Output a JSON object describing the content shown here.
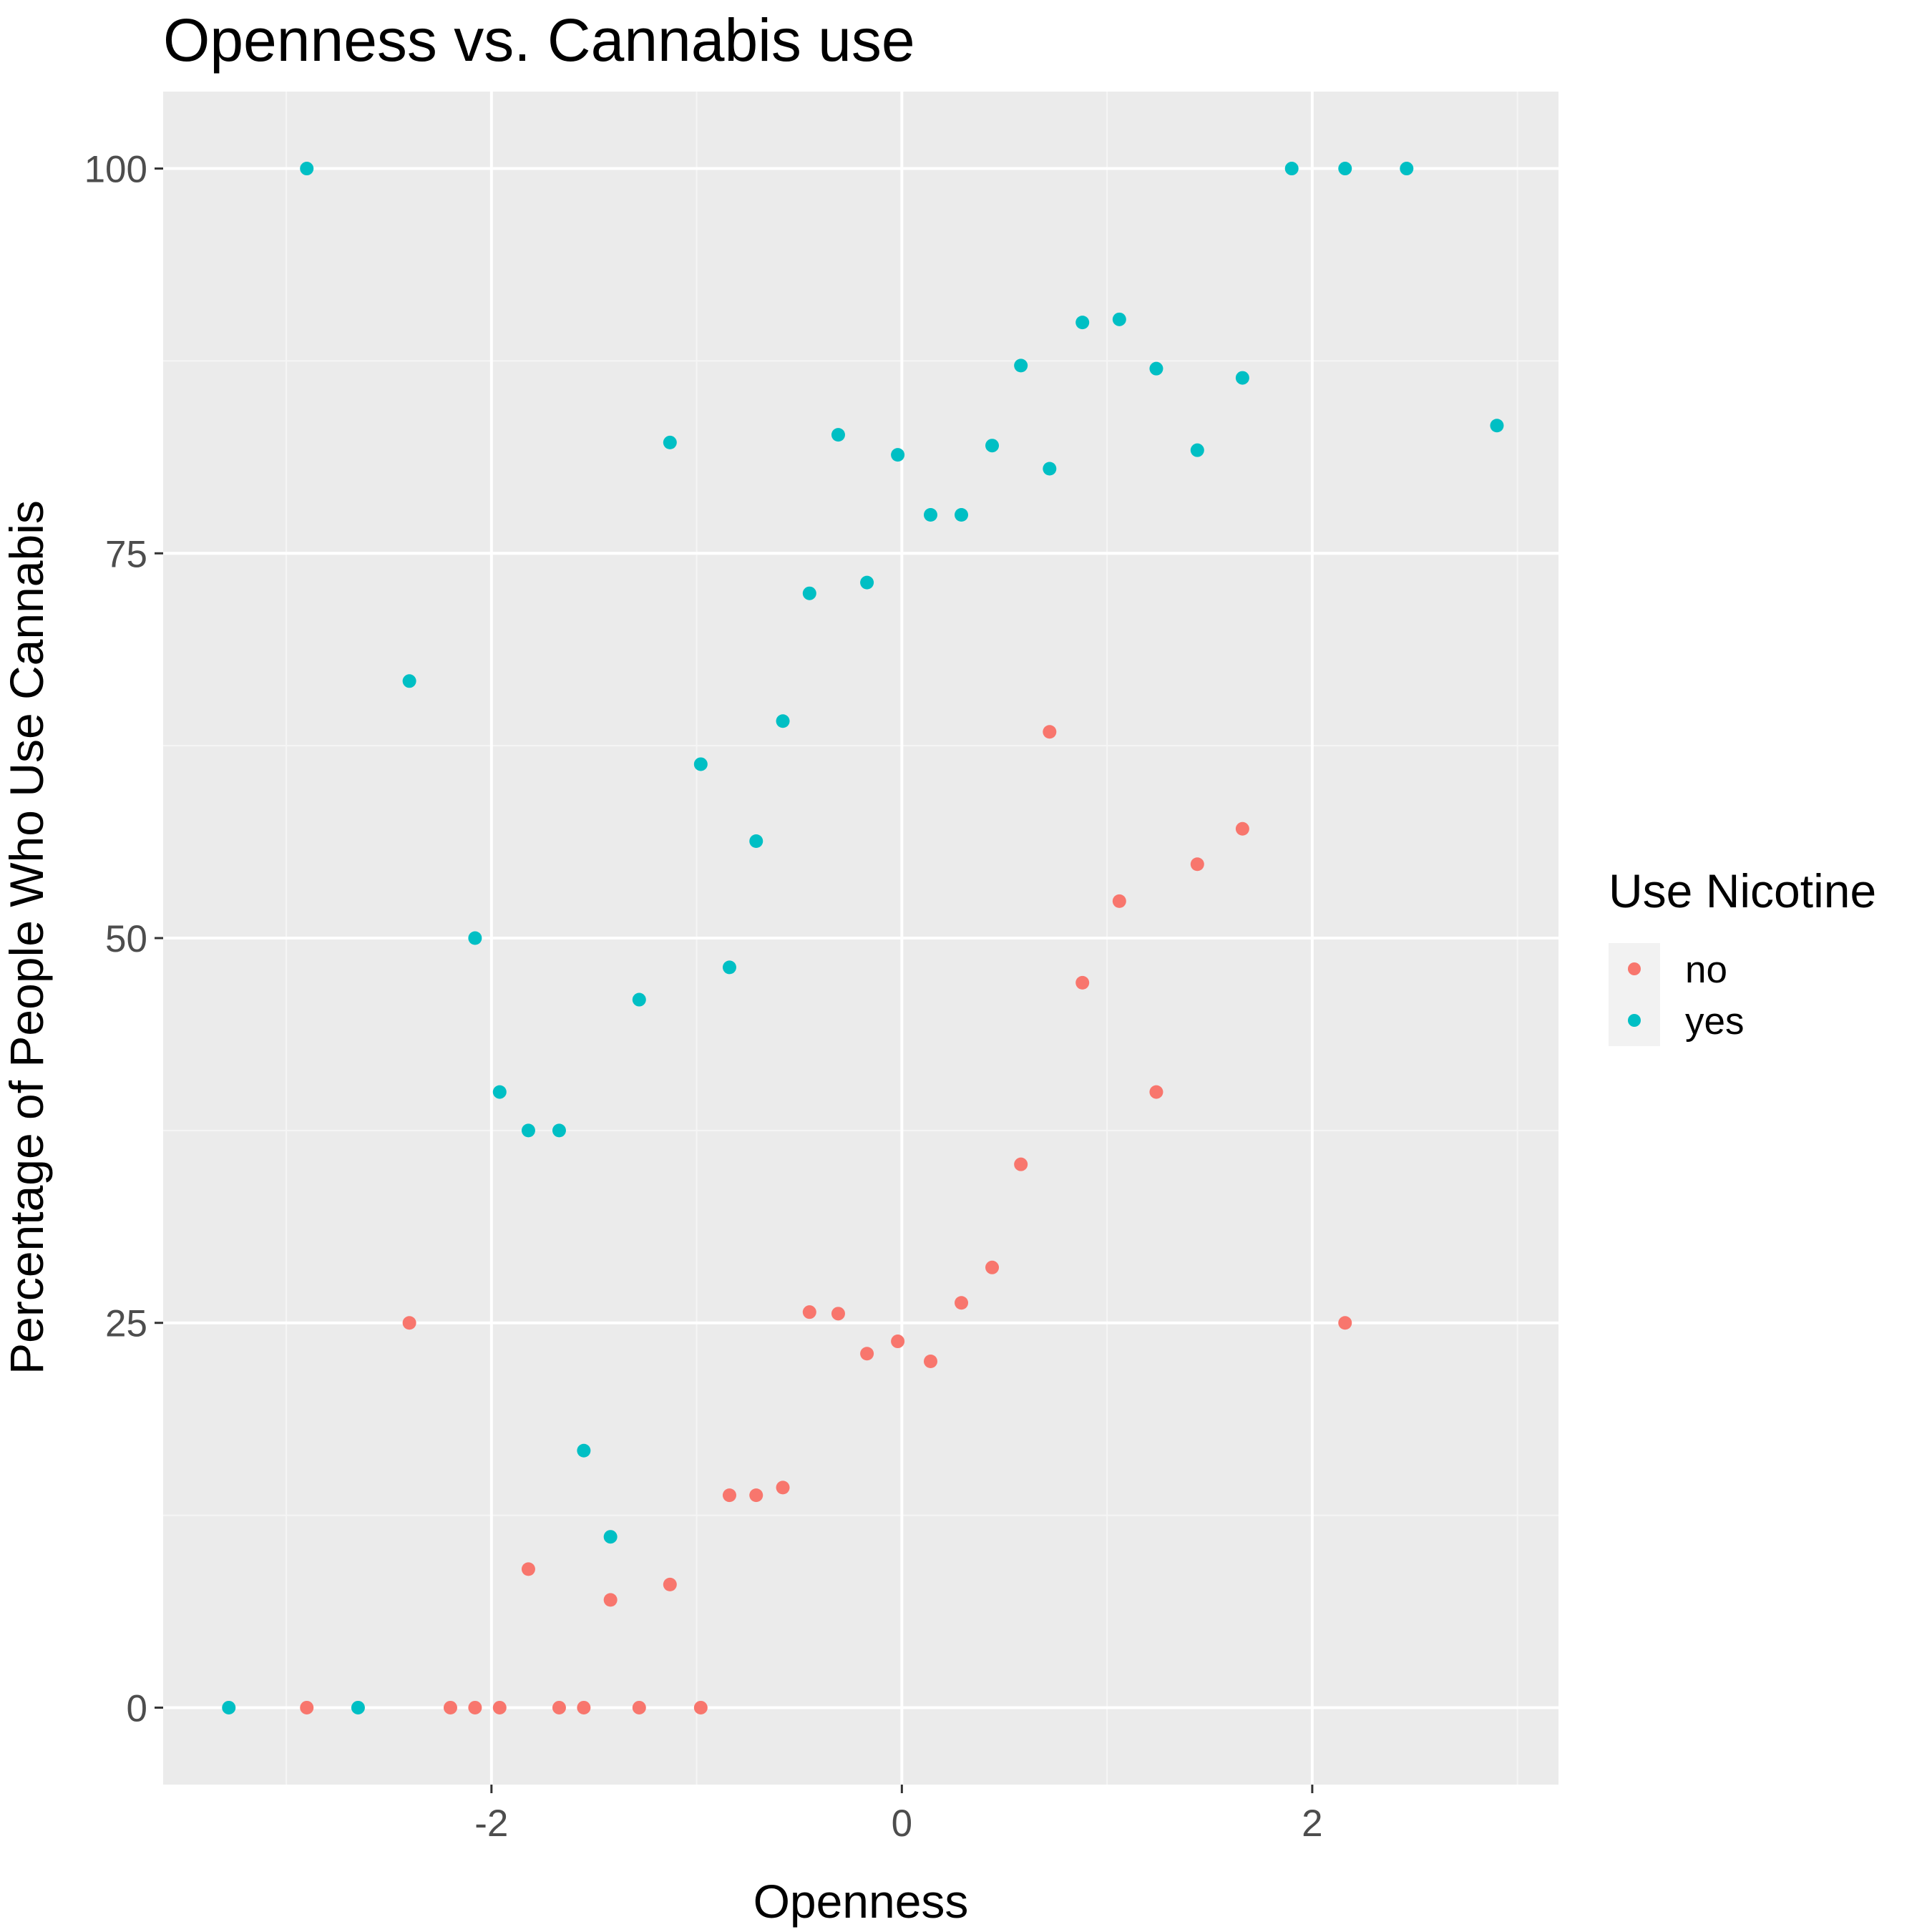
{
  "chart_data": {
    "type": "scatter",
    "title": "Openness vs. Cannabis use",
    "xlabel": "Openness",
    "ylabel": "Percentage of People Who Use Cannabis",
    "xlim": [
      -3.6,
      3.2
    ],
    "ylim": [
      -5,
      105
    ],
    "x_ticks": [
      -2,
      0,
      2
    ],
    "x_tick_labels": [
      "-2",
      "0",
      "2"
    ],
    "y_ticks": [
      0,
      25,
      50,
      75,
      100
    ],
    "y_tick_labels": [
      "0",
      "25",
      "50",
      "75",
      "100"
    ],
    "grid": true,
    "legend": {
      "title": "Use Nicotine",
      "placement": "right"
    },
    "series": [
      {
        "name": "no",
        "color": "#f8766d",
        "points": [
          [
            -2.9,
            0
          ],
          [
            -2.4,
            25
          ],
          [
            -2.2,
            0
          ],
          [
            -2.08,
            0
          ],
          [
            -1.96,
            0
          ],
          [
            -1.82,
            9
          ],
          [
            -1.67,
            0
          ],
          [
            -1.55,
            0
          ],
          [
            -1.42,
            7
          ],
          [
            -1.28,
            0
          ],
          [
            -1.13,
            8
          ],
          [
            -0.98,
            0
          ],
          [
            -0.84,
            13.8
          ],
          [
            -0.71,
            13.8
          ],
          [
            -0.58,
            14.3
          ],
          [
            -0.45,
            25.7
          ],
          [
            -0.31,
            25.6
          ],
          [
            -0.17,
            23
          ],
          [
            -0.02,
            23.8
          ],
          [
            0.14,
            22.5
          ],
          [
            0.29,
            26.3
          ],
          [
            0.44,
            28.6
          ],
          [
            0.58,
            35.3
          ],
          [
            0.72,
            63.4
          ],
          [
            0.88,
            47.1
          ],
          [
            1.06,
            52.4
          ],
          [
            1.24,
            40
          ],
          [
            1.44,
            54.8
          ],
          [
            1.66,
            57.1
          ],
          [
            2.16,
            25
          ]
        ]
      },
      {
        "name": "yes",
        "color": "#00bfc4",
        "points": [
          [
            -3.28,
            0
          ],
          [
            -2.9,
            100
          ],
          [
            -2.65,
            0
          ],
          [
            -2.4,
            66.7
          ],
          [
            -2.08,
            50
          ],
          [
            -1.96,
            40
          ],
          [
            -1.82,
            37.5
          ],
          [
            -1.67,
            37.5
          ],
          [
            -1.55,
            16.7
          ],
          [
            -1.42,
            11.1
          ],
          [
            -1.28,
            46
          ],
          [
            -1.13,
            82.2
          ],
          [
            -0.98,
            61.3
          ],
          [
            -0.84,
            48.1
          ],
          [
            -0.71,
            56.3
          ],
          [
            -0.58,
            64.1
          ],
          [
            -0.45,
            72.4
          ],
          [
            -0.31,
            82.7
          ],
          [
            -0.17,
            73.1
          ],
          [
            -0.02,
            81.4
          ],
          [
            0.14,
            77.5
          ],
          [
            0.29,
            77.5
          ],
          [
            0.44,
            82
          ],
          [
            0.58,
            87.2
          ],
          [
            0.72,
            80.5
          ],
          [
            0.88,
            90
          ],
          [
            1.06,
            90.2
          ],
          [
            1.24,
            87
          ],
          [
            1.44,
            81.7
          ],
          [
            1.66,
            86.4
          ],
          [
            1.9,
            100
          ],
          [
            2.16,
            100
          ],
          [
            2.46,
            100
          ],
          [
            2.9,
            83.3
          ]
        ]
      }
    ]
  }
}
